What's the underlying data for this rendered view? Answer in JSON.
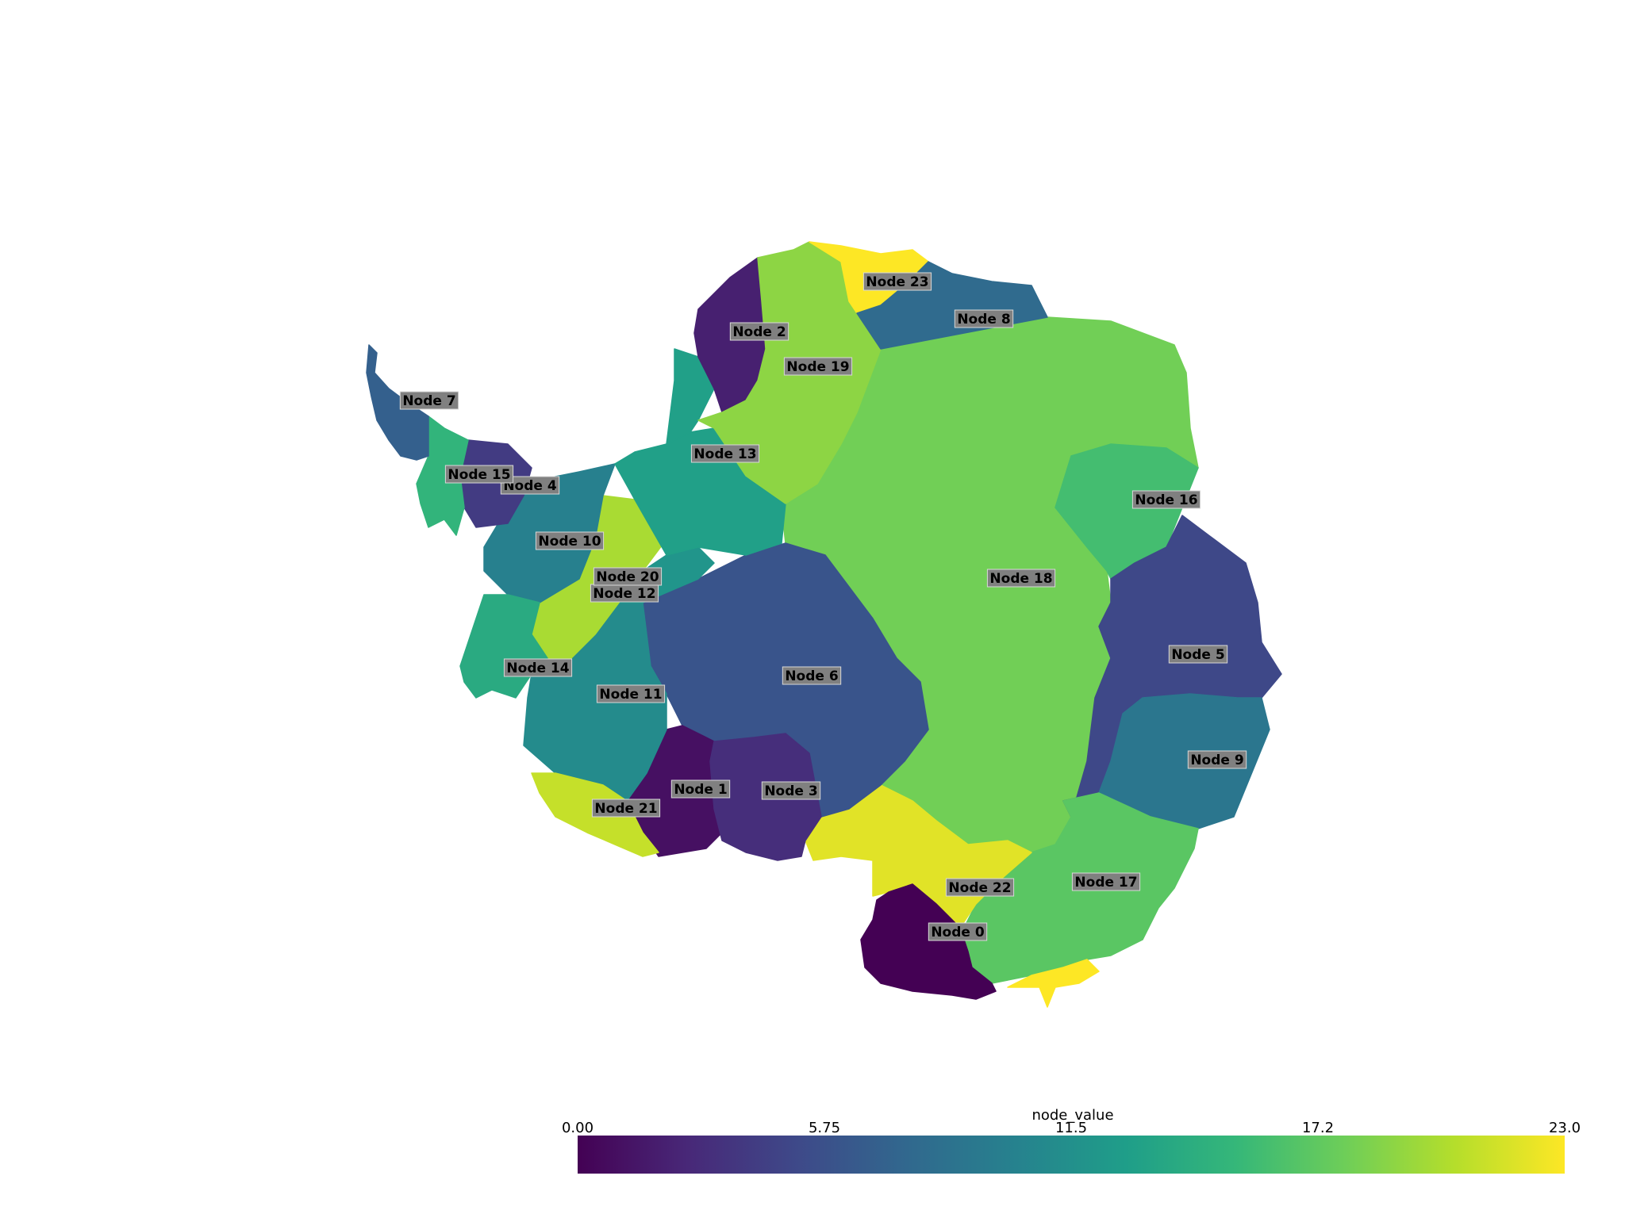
{
  "colorbar": {
    "title": "node_value",
    "tick_labels": [
      "0.00",
      "5.75",
      "11.5",
      "17.2",
      "23.0"
    ],
    "min": 0,
    "max": 23,
    "stops": [
      "#440154",
      "#482878",
      "#3e4989",
      "#31688e",
      "#26828e",
      "#1f9e89",
      "#35b779",
      "#6ece58",
      "#b5de2b",
      "#fde725"
    ]
  },
  "nodes": [
    {
      "id": 0,
      "label": "Node 0",
      "value": 0
    },
    {
      "id": 1,
      "label": "Node 1",
      "value": 1
    },
    {
      "id": 2,
      "label": "Node 2",
      "value": 2
    },
    {
      "id": 3,
      "label": "Node 3",
      "value": 3
    },
    {
      "id": 4,
      "label": "Node 4",
      "value": 4
    },
    {
      "id": 5,
      "label": "Node 5",
      "value": 5
    },
    {
      "id": 6,
      "label": "Node 6",
      "value": 6
    },
    {
      "id": 7,
      "label": "Node 7",
      "value": 7
    },
    {
      "id": 8,
      "label": "Node 8",
      "value": 8
    },
    {
      "id": 9,
      "label": "Node 9",
      "value": 9
    },
    {
      "id": 10,
      "label": "Node 10",
      "value": 10
    },
    {
      "id": 11,
      "label": "Node 11",
      "value": 11
    },
    {
      "id": 12,
      "label": "Node 12",
      "value": 12
    },
    {
      "id": 13,
      "label": "Node 13",
      "value": 13
    },
    {
      "id": 14,
      "label": "Node 14",
      "value": 14
    },
    {
      "id": 15,
      "label": "Node 15",
      "value": 15
    },
    {
      "id": 16,
      "label": "Node 16",
      "value": 16
    },
    {
      "id": 17,
      "label": "Node 17",
      "value": 17
    },
    {
      "id": 18,
      "label": "Node 18",
      "value": 18
    },
    {
      "id": 19,
      "label": "Node 19",
      "value": 19
    },
    {
      "id": 20,
      "label": "Node 20",
      "value": 20
    },
    {
      "id": 21,
      "label": "Node 21",
      "value": 21
    },
    {
      "id": 22,
      "label": "Node 22",
      "value": 22
    },
    {
      "id": 23,
      "label": "Node 23",
      "value": 23
    }
  ]
}
